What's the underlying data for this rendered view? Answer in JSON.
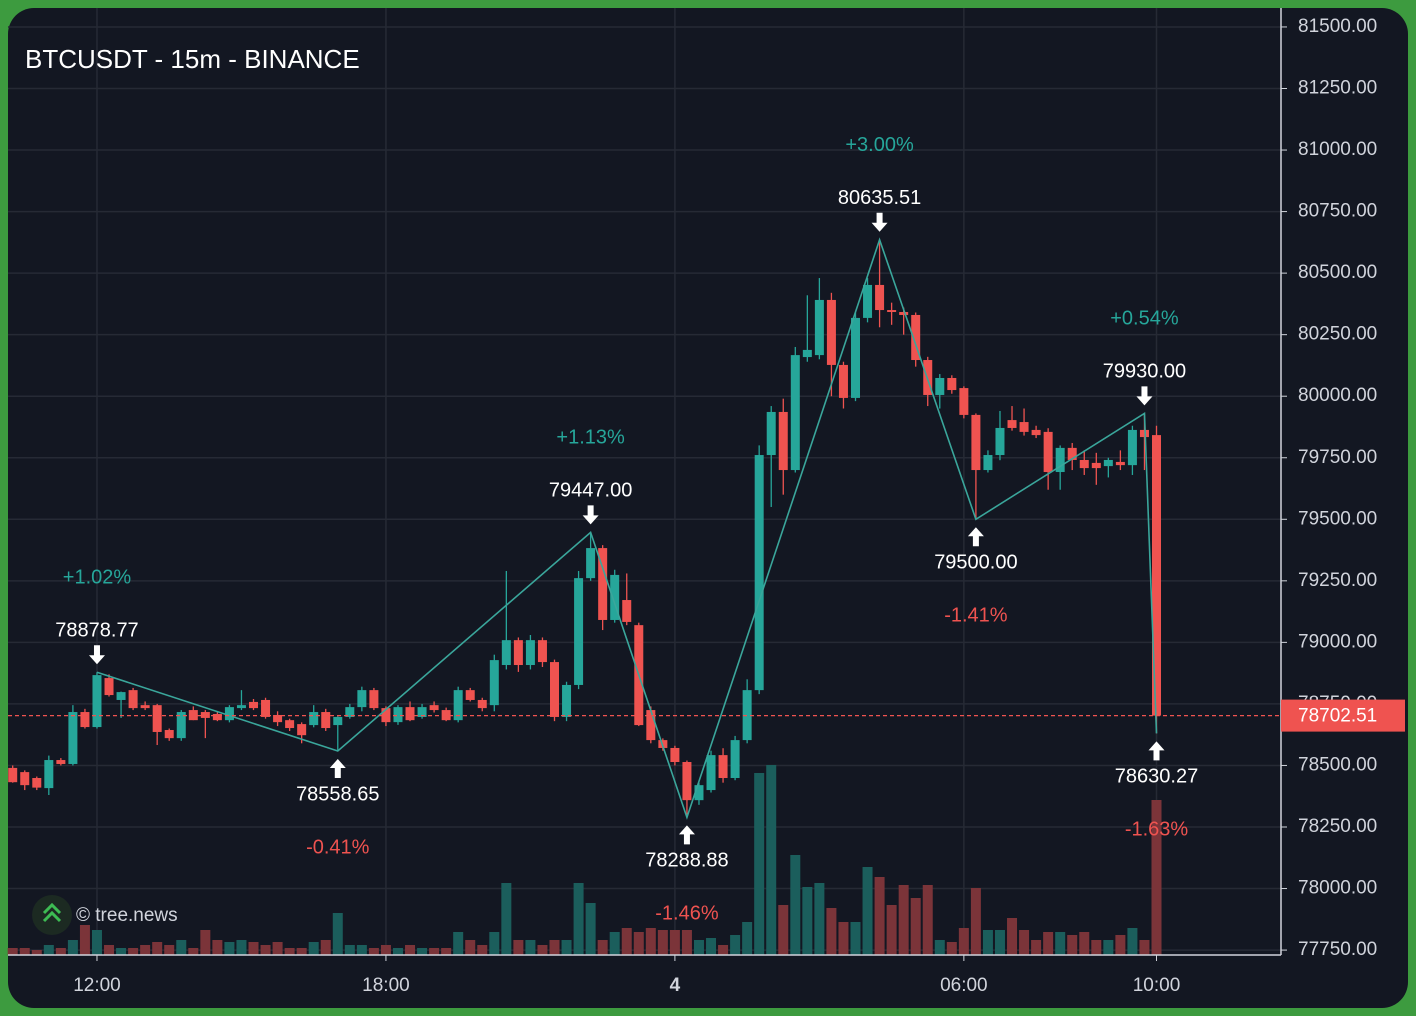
{
  "chart_data": {
    "type": "candlestick",
    "title": "BTCUSDT - 15m - BINANCE",
    "watermark": "© tree.news",
    "categories": [
      "10:15",
      "10:30",
      "10:45",
      "11:00",
      "11:15",
      "11:30",
      "11:45",
      "12:00",
      "12:15",
      "12:30",
      "12:45",
      "13:00",
      "13:15",
      "13:30",
      "13:45",
      "14:00",
      "14:15",
      "14:30",
      "14:45",
      "15:00",
      "15:15",
      "15:30",
      "15:45",
      "16:00",
      "16:15",
      "16:30",
      "16:45",
      "17:00",
      "17:15",
      "17:30",
      "17:45",
      "18:00",
      "18:15",
      "18:30",
      "18:45",
      "19:00",
      "19:15",
      "19:30",
      "19:45",
      "20:00",
      "20:15",
      "20:30",
      "20:45",
      "21:00",
      "21:15",
      "21:30",
      "21:45",
      "22:00",
      "22:15",
      "22:30",
      "22:45",
      "23:00",
      "23:15",
      "23:30",
      "23:45",
      "00:00",
      "00:15",
      "00:30",
      "00:45",
      "01:00",
      "01:15",
      "01:30",
      "01:45",
      "02:00",
      "02:15",
      "02:30",
      "02:45",
      "03:00",
      "03:15",
      "03:30",
      "03:45",
      "04:00",
      "04:15",
      "04:30",
      "04:45",
      "05:00",
      "05:15",
      "05:30",
      "05:45",
      "06:00",
      "06:15",
      "06:30",
      "06:45",
      "07:00",
      "07:15",
      "07:30",
      "07:45",
      "08:00",
      "08:15",
      "08:30",
      "08:45",
      "09:00",
      "09:15",
      "09:30",
      "09:45",
      "10:00"
    ],
    "open": [
      78490,
      78473,
      78449,
      78408,
      78522,
      78506,
      78717,
      78656,
      78855,
      78766,
      78806,
      78745,
      78745,
      78644,
      78611,
      78725,
      78717,
      78709,
      78684,
      78733,
      78758,
      78766,
      78705,
      78684,
      78668,
      78664,
      78717,
      78664,
      78697,
      78737,
      78806,
      78733,
      78676,
      78737,
      78697,
      78745,
      78725,
      78684,
      78806,
      78766,
      78745,
      78908,
      79009,
      78908,
      79009,
      78920,
      78697,
      78827,
      79261,
      79383,
      79091,
      79172,
      79070,
      78725,
      78603,
      78571,
      78514,
      78359,
      78400,
      78542,
      78449,
      78603,
      78806,
      79761,
      79936,
      79700,
      80159,
      80167,
      80391,
      80127,
      79993,
      80318,
      80452,
      80350,
      80342,
      80330,
      80147,
      80005,
      80074,
      80033,
      79924,
      79700,
      79761,
      79903,
      79895,
      79863,
      79855,
      79692,
      79790,
      79741,
      79729,
      79716,
      79733,
      79720,
      79863,
      79842
    ],
    "high": [
      78500,
      78480,
      78455,
      78540,
      78530,
      78745,
      78730,
      78878.77,
      78870,
      78800,
      78815,
      78760,
      78750,
      78650,
      78725,
      78740,
      78725,
      78720,
      78745,
      78806,
      78770,
      78775,
      78720,
      78690,
      78675,
      78745,
      78730,
      78700,
      78750,
      78820,
      78815,
      78740,
      78745,
      78760,
      78750,
      78760,
      78735,
      78820,
      78815,
      78775,
      78950,
      79290,
      79020,
      79030,
      79020,
      78930,
      78840,
      79290,
      79447,
      79395,
      79295,
      79280,
      79080,
      78740,
      78610,
      78580,
      78520,
      78430,
      78560,
      78570,
      78620,
      78850,
      79800,
      79960,
      79990,
      80200,
      80410,
      80480,
      80420,
      80140,
      80340,
      80480,
      80635.51,
      80380,
      80360,
      80340,
      80160,
      80090,
      80085,
      80040,
      79930,
      79780,
      79940,
      79960,
      79950,
      79880,
      79870,
      79800,
      79810,
      79780,
      79770,
      79750,
      79780,
      79880,
      79930,
      79880
    ],
    "low": [
      78430,
      78400,
      78400,
      78380,
      78500,
      78500,
      78650,
      78650,
      78780,
      78693,
      78725,
      78725,
      78583,
      78600,
      78600,
      78684,
      78611,
      78680,
      78675,
      78725,
      78725,
      78690,
      78660,
      78640,
      78590,
      78655,
      78640,
      78558.65,
      78690,
      78720,
      78725,
      78660,
      78665,
      78680,
      78690,
      78715,
      78680,
      78675,
      78760,
      78720,
      78720,
      78890,
      78880,
      78890,
      78900,
      78680,
      78680,
      78810,
      79250,
      79050,
      79080,
      79070,
      78660,
      78590,
      78560,
      78500,
      78288.88,
      78340,
      78390,
      78430,
      78440,
      78590,
      78790,
      79550,
      79600,
      79690,
      80140,
      80150,
      80000,
      79950,
      79980,
      80300,
      80280,
      80290,
      80250,
      80120,
      79960,
      79950,
      80010,
      79910,
      79500,
      79690,
      79740,
      79860,
      79840,
      79830,
      79620,
      79620,
      79700,
      79680,
      79640,
      79670,
      79700,
      79680,
      79700,
      78630.27
    ],
    "close": [
      78432,
      78420,
      78410,
      78522,
      78506,
      78717,
      78656,
      78867,
      78786,
      78798,
      78733,
      78733,
      78636,
      78611,
      78717,
      78684,
      78693,
      78684,
      78737,
      78745,
      78733,
      78697,
      78676,
      78652,
      78623,
      78717,
      78652,
      78697,
      78737,
      78806,
      78733,
      78676,
      78737,
      78684,
      78737,
      78725,
      78684,
      78806,
      78766,
      78733,
      78928,
      79009,
      78908,
      79009,
      78920,
      78697,
      78827,
      79261,
      79383,
      79091,
      79274,
      79083,
      78664,
      78603,
      78571,
      78514,
      78359,
      78420,
      78542,
      78449,
      78603,
      78806,
      79761,
      79936,
      79700,
      80167,
      80188,
      80391,
      80127,
      79993,
      80318,
      80452,
      80350,
      80342,
      80330,
      80147,
      80005,
      80074,
      80025,
      79924,
      79700,
      79761,
      79871,
      79871,
      79855,
      79842,
      79692,
      79790,
      79741,
      79708,
      79708,
      79741,
      79720,
      79863,
      79834,
      78702.51
    ],
    "volume": [
      7,
      7,
      5,
      10,
      7,
      15,
      30,
      25,
      10,
      7,
      7,
      10,
      13,
      10,
      15,
      7,
      25,
      15,
      13,
      15,
      13,
      10,
      13,
      7,
      7,
      13,
      15,
      42,
      10,
      10,
      7,
      10,
      7,
      10,
      7,
      7,
      7,
      23,
      15,
      10,
      23,
      72,
      15,
      15,
      10,
      15,
      15,
      72,
      52,
      15,
      23,
      27,
      23,
      27,
      25,
      25,
      25,
      15,
      17,
      10,
      20,
      33,
      182,
      190,
      50,
      100,
      68,
      72,
      47,
      33,
      33,
      88,
      78,
      50,
      70,
      57,
      70,
      15,
      13,
      27,
      67,
      25,
      25,
      37,
      25,
      15,
      23,
      23,
      20,
      23,
      15,
      15,
      20,
      27,
      15,
      155
    ],
    "up_color": "#26a69a",
    "down_color": "#ef5350",
    "up_volume_color": "#1b5e5c",
    "down_volume_color": "#7b3439",
    "ylim": [
      77730,
      81577
    ],
    "yticks": [
      {
        "value": 77750,
        "label": "77750.00"
      },
      {
        "value": 78000,
        "label": "78000.00"
      },
      {
        "value": 78250,
        "label": "78250.00"
      },
      {
        "value": 78500,
        "label": "78500.00"
      },
      {
        "value": 78750,
        "label": "78750.00"
      },
      {
        "value": 79000,
        "label": "79000.00"
      },
      {
        "value": 79250,
        "label": "79250.00"
      },
      {
        "value": 79500,
        "label": "79500.00"
      },
      {
        "value": 79750,
        "label": "79750.00"
      },
      {
        "value": 80000,
        "label": "80000.00"
      },
      {
        "value": 80250,
        "label": "80250.00"
      },
      {
        "value": 80500,
        "label": "80500.00"
      },
      {
        "value": 80750,
        "label": "80750.00"
      },
      {
        "value": 81000,
        "label": "81000.00"
      },
      {
        "value": 81250,
        "label": "81250.00"
      },
      {
        "value": 81500,
        "label": "81500.00"
      }
    ],
    "xticks": [
      "12:00",
      "18:00",
      {
        "value": "00:00",
        "label": "4"
      },
      "06:00",
      "10:00"
    ],
    "grid": true,
    "last_price": 78702.51,
    "pivots": [
      {
        "x": "12:00",
        "value": 78878.77,
        "label": "78878.77",
        "kind": "high",
        "change": "+1.02%"
      },
      {
        "x": "17:00",
        "value": 78558.65,
        "label": "78558.65",
        "kind": "low",
        "change": "-0.41%"
      },
      {
        "x": "22:15",
        "value": 79447,
        "label": "79447.00",
        "kind": "high",
        "change": "+1.13%"
      },
      {
        "x": "00:15",
        "value": 78288.88,
        "label": "78288.88",
        "kind": "low",
        "change": "-1.46%"
      },
      {
        "x": "04:15",
        "value": 80635.51,
        "label": "80635.51",
        "kind": "high",
        "change": "+3.00%"
      },
      {
        "x": "06:15",
        "value": 79500,
        "label": "79500.00",
        "kind": "low",
        "change": "-1.41%"
      },
      {
        "x": "09:45",
        "value": 79930,
        "label": "79930.00",
        "kind": "high",
        "change": "+0.54%"
      },
      {
        "x": "10:00",
        "value": 78630.27,
        "label": "78630.27",
        "kind": "low",
        "change": "-1.63%"
      }
    ],
    "zigzag_color": "#3aa69b"
  }
}
